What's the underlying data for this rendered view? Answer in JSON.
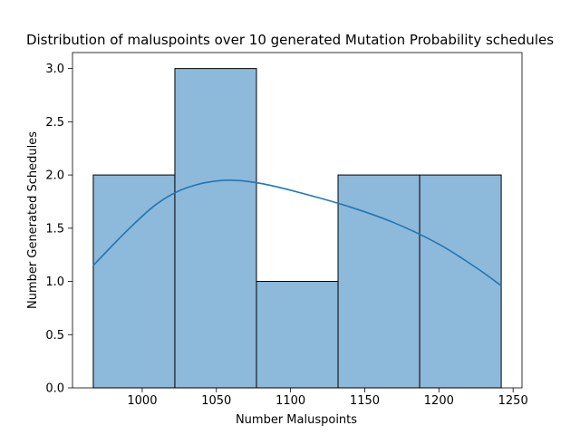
{
  "chart_data": {
    "type": "bar",
    "title": "Distribution of maluspoints over 10 generated Mutation Probability schedules",
    "xlabel": "Number Maluspoints",
    "ylabel": "Number Generated Schedules",
    "bins": [
      {
        "start": 967,
        "end": 1022,
        "count": 2
      },
      {
        "start": 1022,
        "end": 1077,
        "count": 3
      },
      {
        "start": 1077,
        "end": 1132,
        "count": 1
      },
      {
        "start": 1132,
        "end": 1187,
        "count": 2
      },
      {
        "start": 1187,
        "end": 1242,
        "count": 2
      }
    ],
    "kde": {
      "x": [
        967,
        990,
        1010,
        1030,
        1055,
        1080,
        1110,
        1140,
        1170,
        1200,
        1225,
        1242
      ],
      "y": [
        1.15,
        1.48,
        1.73,
        1.88,
        1.95,
        1.92,
        1.82,
        1.7,
        1.55,
        1.35,
        1.13,
        0.96
      ]
    },
    "xlim": [
      953,
      1256
    ],
    "ylim": [
      0,
      3.15
    ],
    "xticks": [
      1000,
      1050,
      1100,
      1150,
      1200,
      1250
    ],
    "yticks": [
      0.0,
      0.5,
      1.0,
      1.5,
      2.0,
      2.5,
      3.0
    ],
    "xtick_labels": [
      "1000",
      "1050",
      "1100",
      "1150",
      "1200",
      "1250"
    ],
    "ytick_labels": [
      "0.0",
      "0.5",
      "1.0",
      "1.5",
      "2.0",
      "2.5",
      "3.0"
    ],
    "bar_color": "#8db9da",
    "bar_edge_color": "#000000",
    "line_color": "#1f77b4",
    "grid": false,
    "legend": "none"
  }
}
